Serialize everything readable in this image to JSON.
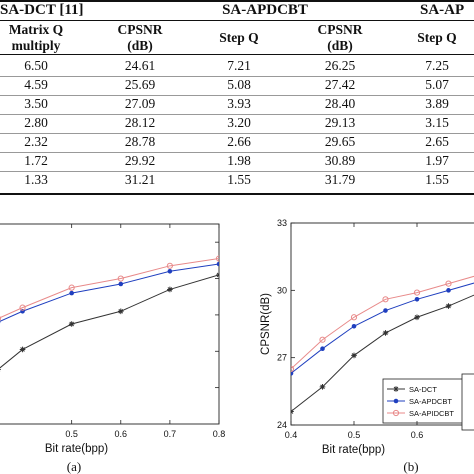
{
  "table": {
    "group_headers": [
      "SA-DCT [11]",
      "SA-APDCBT",
      "SA-AP"
    ],
    "sub_headers": [
      [
        "Matrix Q",
        "multiply"
      ],
      [
        "CPSNR",
        "(dB)"
      ],
      [
        "Step Q"
      ],
      [
        "CPSNR",
        "(dB)"
      ],
      [
        "Step Q"
      ]
    ],
    "rows": [
      [
        "6.50",
        "24.61",
        "7.21",
        "26.25",
        "7.25"
      ],
      [
        "4.59",
        "25.69",
        "5.08",
        "27.42",
        "5.07"
      ],
      [
        "3.50",
        "27.09",
        "3.93",
        "28.40",
        "3.89"
      ],
      [
        "2.80",
        "28.12",
        "3.20",
        "29.13",
        "3.15"
      ],
      [
        "2.32",
        "28.78",
        "2.66",
        "29.65",
        "2.65"
      ],
      [
        "1.72",
        "29.92",
        "1.98",
        "30.89",
        "1.97"
      ],
      [
        "1.33",
        "31.21",
        "1.55",
        "31.79",
        "1.55"
      ]
    ]
  },
  "chart_data": [
    {
      "type": "line",
      "panel_label": "(a)",
      "xlabel": "Bit rate(bpp)",
      "ylabel": "",
      "xlim": [
        0.35,
        0.8
      ],
      "ylim": [
        23,
        34
      ],
      "x_ticks": [
        "0.5",
        "0.6",
        "0.7",
        "0.8"
      ],
      "y_ticks": [],
      "legend": {
        "placement": "bottom-right",
        "entries": [
          "SA-DCT",
          "SA-APDCBT",
          "SA-APIDCBT"
        ]
      },
      "series": [
        {
          "name": "SA-DCT",
          "color": "#333333",
          "marker": "star",
          "x": [
            0.35,
            0.4,
            0.5,
            0.6,
            0.7,
            0.8
          ],
          "y": [
            26.0,
            27.1,
            28.5,
            29.2,
            30.4,
            31.2
          ]
        },
        {
          "name": "SA-APDCBT",
          "color": "#1f3fbf",
          "marker": "dot",
          "x": [
            0.35,
            0.4,
            0.5,
            0.6,
            0.7,
            0.8
          ],
          "y": [
            28.6,
            29.2,
            30.2,
            30.7,
            31.4,
            31.8
          ]
        },
        {
          "name": "SA-APIDCBT",
          "color": "#e88a8a",
          "marker": "circle",
          "x": [
            0.35,
            0.4,
            0.5,
            0.6,
            0.7,
            0.8
          ],
          "y": [
            28.8,
            29.4,
            30.5,
            31.0,
            31.7,
            32.1
          ]
        }
      ]
    },
    {
      "type": "line",
      "panel_label": "(b)",
      "xlabel": "Bit rate(bpp)",
      "ylabel": "CPSNR(dB)",
      "xlim": [
        0.4,
        0.7
      ],
      "ylim": [
        24,
        33
      ],
      "x_ticks": [
        "0.4",
        "0.5",
        "0.6"
      ],
      "y_ticks": [
        "24",
        "27",
        "30",
        "33"
      ],
      "series": [
        {
          "name": "SA-DCT",
          "color": "#333333",
          "marker": "star",
          "x": [
            0.4,
            0.45,
            0.5,
            0.55,
            0.6,
            0.65,
            0.7
          ],
          "y": [
            24.6,
            25.7,
            27.1,
            28.1,
            28.8,
            29.3,
            29.9
          ]
        },
        {
          "name": "SA-APDCBT",
          "color": "#1f3fbf",
          "marker": "dot",
          "x": [
            0.4,
            0.45,
            0.5,
            0.55,
            0.6,
            0.65,
            0.7
          ],
          "y": [
            26.3,
            27.4,
            28.4,
            29.1,
            29.6,
            30.0,
            30.4
          ]
        },
        {
          "name": "SA-APIDCBT",
          "color": "#e88a8a",
          "marker": "circle",
          "x": [
            0.4,
            0.45,
            0.5,
            0.55,
            0.6,
            0.65,
            0.7
          ],
          "y": [
            26.5,
            27.8,
            28.8,
            29.6,
            29.9,
            30.3,
            30.7
          ]
        }
      ]
    }
  ]
}
